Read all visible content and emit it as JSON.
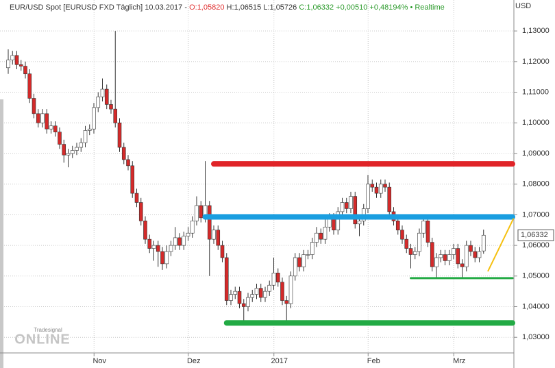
{
  "chart_data": {
    "type": "candlestick",
    "title_parts": {
      "instrument": "EUR/USD Spot [EURUSD FXD Täglich] 10.03.2017 -",
      "open": "O:1,05820",
      "high": "H:1,06515",
      "low": "L:1,05726",
      "change": "C:1,06332 +0,00510 +0,48194%",
      "status": "• Realtime"
    },
    "currency": "USD",
    "brand": {
      "small": "Tradesignal",
      "large": "ONLINE"
    },
    "up_color": "#ffffff",
    "down_color": "#d42a2a",
    "outline_color": "#333333",
    "grid": true,
    "categories": [
      null,
      null,
      null,
      null,
      null,
      null,
      null,
      null,
      null,
      null,
      null,
      null,
      null,
      null,
      null,
      null,
      null,
      null,
      null,
      null,
      null,
      "Nov",
      null,
      null,
      null,
      null,
      null,
      null,
      null,
      null,
      null,
      null,
      null,
      null,
      null,
      null,
      null,
      null,
      null,
      null,
      null,
      null,
      null,
      "Dez",
      null,
      null,
      null,
      null,
      null,
      null,
      null,
      null,
      null,
      null,
      null,
      null,
      null,
      null,
      null,
      null,
      null,
      null,
      null,
      "2017",
      null,
      null,
      null,
      null,
      null,
      null,
      null,
      null,
      null,
      null,
      null,
      null,
      null,
      null,
      null,
      null,
      null,
      null,
      null,
      null,
      null,
      "Feb",
      null,
      null,
      null,
      null,
      null,
      null,
      null,
      null,
      null,
      null,
      null,
      null,
      null,
      null,
      null,
      null,
      null,
      null,
      null,
      "Mrz",
      null,
      null,
      null,
      null,
      null,
      null
    ],
    "open": [
      1.118,
      1.1205,
      1.122,
      1.119,
      1.1185,
      1.116,
      1.108,
      1.103,
      1.1,
      1.103,
      1.098,
      1.099,
      1.097,
      1.093,
      1.0895,
      1.09,
      1.091,
      1.092,
      1.0935,
      1.0975,
      1.098,
      1.105,
      1.1085,
      1.111,
      1.106,
      1.1045,
      1.1,
      1.092,
      1.088,
      1.086,
      1.077,
      1.074,
      1.068,
      1.062,
      1.059,
      1.06,
      1.058,
      1.054,
      1.058,
      1.06,
      1.0625,
      1.06,
      1.063,
      1.064,
      1.068,
      1.073,
      1.069,
      1.073,
      1.062,
      1.065,
      1.06,
      1.056,
      1.042,
      1.044,
      1.045,
      1.041,
      1.04,
      1.043,
      1.044,
      1.046,
      1.043,
      1.045,
      1.047,
      1.051,
      1.048,
      1.042,
      1.041,
      1.05,
      1.056,
      1.053,
      1.057,
      1.057,
      1.061,
      1.064,
      1.062,
      1.066,
      1.069,
      1.065,
      1.071,
      1.074,
      1.072,
      1.076,
      1.067,
      1.068,
      1.072,
      1.08,
      1.079,
      1.077,
      1.08,
      1.079,
      1.071,
      1.068,
      1.065,
      1.062,
      1.059,
      1.057,
      1.058,
      1.064,
      1.068,
      1.061,
      1.053,
      1.056,
      1.057,
      1.055,
      1.057,
      1.059,
      1.054,
      1.053,
      1.06,
      1.058,
      1.056,
      1.0582
    ],
    "high": [
      1.124,
      1.1235,
      1.1235,
      1.1205,
      1.12,
      1.1175,
      1.1095,
      1.1045,
      1.1045,
      1.1045,
      1.1005,
      1.1005,
      1.0985,
      1.0945,
      1.0915,
      1.0925,
      1.0935,
      1.095,
      1.099,
      1.0995,
      1.1065,
      1.11,
      1.1145,
      1.1125,
      1.1075,
      1.13,
      1.1015,
      1.0935,
      1.0895,
      1.0875,
      1.0785,
      1.0755,
      1.0695,
      1.0635,
      1.0615,
      1.0615,
      1.0595,
      1.06,
      1.0615,
      1.066,
      1.064,
      1.0645,
      1.066,
      1.0695,
      1.076,
      1.0745,
      1.0875,
      1.0745,
      1.0665,
      1.0665,
      1.0615,
      1.0575,
      1.0455,
      1.0465,
      1.0465,
      1.0425,
      1.0445,
      1.0455,
      1.0475,
      1.0475,
      1.0465,
      1.0485,
      1.056,
      1.0525,
      1.0495,
      1.0435,
      1.0515,
      1.0575,
      1.0575,
      1.0585,
      1.0585,
      1.0625,
      1.066,
      1.0655,
      1.069,
      1.0705,
      1.0705,
      1.0725,
      1.0755,
      1.0755,
      1.0775,
      1.0775,
      1.0695,
      1.0735,
      1.083,
      1.0815,
      1.0805,
      1.0815,
      1.0815,
      1.0805,
      1.0725,
      1.0695,
      1.0665,
      1.0635,
      1.0605,
      1.0595,
      1.0655,
      1.0695,
      1.0695,
      1.0625,
      1.0575,
      1.0585,
      1.0585,
      1.0585,
      1.0605,
      1.0605,
      1.0555,
      1.0615,
      1.0615,
      1.0595,
      1.0595,
      1.06515
    ],
    "low": [
      1.116,
      1.119,
      1.1175,
      1.117,
      1.1145,
      1.1065,
      1.1015,
      1.0985,
      1.0985,
      1.0965,
      1.0965,
      1.0955,
      1.0915,
      1.087,
      1.0855,
      1.0885,
      1.0895,
      1.0905,
      1.092,
      1.096,
      1.0965,
      1.1035,
      1.107,
      1.1045,
      1.103,
      1.0985,
      1.0905,
      1.0865,
      1.0845,
      1.0755,
      1.0725,
      1.0665,
      1.0605,
      1.0575,
      1.055,
      1.053,
      1.052,
      1.0525,
      1.0565,
      1.0585,
      1.0585,
      1.0585,
      1.0615,
      1.0625,
      1.0665,
      1.0675,
      1.0675,
      1.05,
      1.0605,
      1.0585,
      1.0545,
      1.0405,
      1.0405,
      1.0425,
      1.0395,
      1.0355,
      1.0385,
      1.0415,
      1.0425,
      1.0415,
      1.0415,
      1.0435,
      1.0455,
      1.0465,
      1.0405,
      1.0355,
      1.0395,
      1.0485,
      1.0515,
      1.0515,
      1.0555,
      1.0555,
      1.0595,
      1.0605,
      1.0605,
      1.0645,
      1.0635,
      1.0635,
      1.0695,
      1.0705,
      1.0705,
      1.0655,
      1.063,
      1.0665,
      1.0705,
      1.0775,
      1.0755,
      1.0755,
      1.0775,
      1.0695,
      1.0665,
      1.0635,
      1.0605,
      1.0575,
      1.0525,
      1.0555,
      1.0565,
      1.0625,
      1.0595,
      1.0515,
      1.0495,
      1.0545,
      1.0535,
      1.0535,
      1.0555,
      1.0525,
      1.0495,
      1.0515,
      1.0565,
      1.0545,
      1.0545,
      1.05726
    ],
    "close": [
      1.1205,
      1.122,
      1.119,
      1.1185,
      1.116,
      1.108,
      1.103,
      1.1,
      1.103,
      1.098,
      1.099,
      1.097,
      1.093,
      1.0895,
      1.09,
      1.091,
      1.092,
      1.0935,
      1.0975,
      1.098,
      1.105,
      1.1085,
      1.111,
      1.106,
      1.1045,
      1.1,
      1.092,
      1.088,
      1.086,
      1.077,
      1.074,
      1.068,
      1.062,
      1.059,
      1.06,
      1.058,
      1.054,
      1.058,
      1.06,
      1.0625,
      1.06,
      1.063,
      1.064,
      1.068,
      1.073,
      1.069,
      1.073,
      1.062,
      1.065,
      1.06,
      1.056,
      1.042,
      1.044,
      1.045,
      1.041,
      1.04,
      1.043,
      1.044,
      1.046,
      1.043,
      1.045,
      1.047,
      1.051,
      1.048,
      1.042,
      1.041,
      1.05,
      1.056,
      1.053,
      1.057,
      1.057,
      1.061,
      1.064,
      1.062,
      1.066,
      1.069,
      1.065,
      1.071,
      1.074,
      1.072,
      1.076,
      1.067,
      1.068,
      1.072,
      1.08,
      1.079,
      1.077,
      1.08,
      1.079,
      1.071,
      1.068,
      1.065,
      1.062,
      1.059,
      1.057,
      1.058,
      1.064,
      1.068,
      1.061,
      1.053,
      1.056,
      1.057,
      1.055,
      1.057,
      1.059,
      1.054,
      1.053,
      1.06,
      1.058,
      1.056,
      1.058,
      1.06332
    ],
    "ylim": [
      1.0249,
      1.1401
    ],
    "yticks": [
      {
        "value": 1.03,
        "label": "1,03000"
      },
      {
        "value": 1.04,
        "label": "1,04000"
      },
      {
        "value": 1.05,
        "label": "1,05000"
      },
      {
        "value": 1.06,
        "label": "1,06000"
      },
      {
        "value": 1.07,
        "label": "1,07000"
      },
      {
        "value": 1.08,
        "label": "1,08000"
      },
      {
        "value": 1.09,
        "label": "1,09000"
      },
      {
        "value": 1.1,
        "label": "1,10000"
      },
      {
        "value": 1.11,
        "label": "1,11000"
      },
      {
        "value": 1.12,
        "label": "1,12000"
      },
      {
        "value": 1.13,
        "label": "1,13000"
      }
    ],
    "last_price": {
      "value": 1.06332,
      "label": "1,06332"
    },
    "annotations": [
      {
        "kind": "hline",
        "color": "#e02428",
        "style": "thick",
        "value": 1.0866,
        "start": 48
      },
      {
        "kind": "hline",
        "color": "#1a9ee0",
        "style": "thick",
        "value": 1.0693,
        "start": 46
      },
      {
        "kind": "hline",
        "color": "#22aa44",
        "style": "thick",
        "value": 1.0347,
        "start": 51
      },
      {
        "kind": "hline",
        "color": "#22aa44",
        "style": "thin",
        "value": 1.0493,
        "start": 94
      },
      {
        "kind": "segment",
        "color": "#f5c010",
        "style": "thin",
        "x": [
          112,
          118
        ],
        "values": [
          1.0515,
          1.0688
        ]
      }
    ]
  }
}
